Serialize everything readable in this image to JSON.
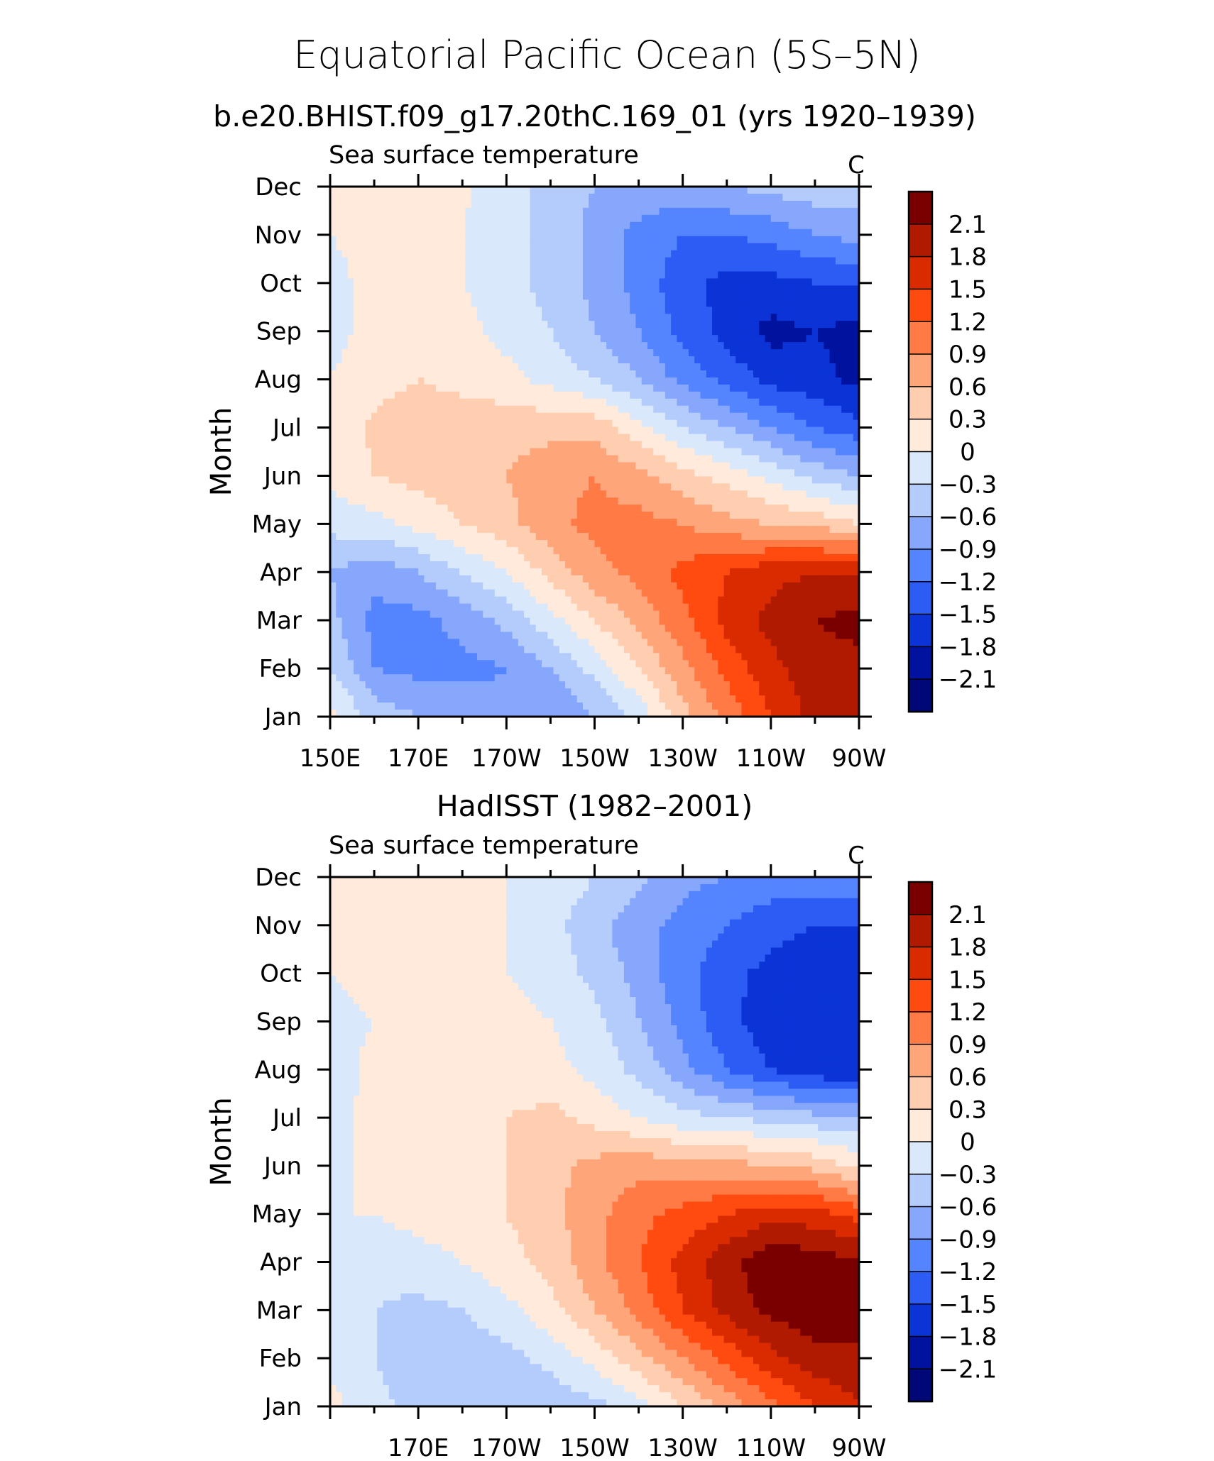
{
  "page": {
    "title": "Equatorial Pacific Ocean (5S–5N)"
  },
  "colorbar": {
    "labels": [
      "2.1",
      "1.8",
      "1.5",
      "1.2",
      "0.9",
      "0.6",
      "0.3",
      "0",
      "−0.3",
      "−0.6",
      "−0.9",
      "−1.2",
      "−1.5",
      "−1.8",
      "−2.1"
    ],
    "colors": [
      "#7a0000",
      "#b01a00",
      "#d92a00",
      "#ff4a10",
      "#ff7a45",
      "#ffa57a",
      "#ffcdb0",
      "#ffeadb",
      "#d9e8fb",
      "#b4ccfb",
      "#86a7fc",
      "#5584ff",
      "#2d5cf5",
      "#0b33d6",
      "#00129e",
      "#000878"
    ]
  },
  "chart_data": [
    {
      "type": "heatmap",
      "title": "b.e20.BHIST.f09_g17.20thC.169_01 (yrs 1920–1939)",
      "left_label": "Sea surface temperature",
      "units_label": "C",
      "ylabel": "Month",
      "xlabel": "",
      "y_categories": [
        "Jan",
        "Feb",
        "Mar",
        "Apr",
        "May",
        "Jun",
        "Jul",
        "Aug",
        "Sep",
        "Oct",
        "Nov",
        "Dec"
      ],
      "x_tick_labels": [
        "150E",
        "170E",
        "170W",
        "150W",
        "130W",
        "110W",
        "90W"
      ],
      "x_tick_lon": [
        150,
        170,
        190,
        210,
        230,
        250,
        270
      ],
      "xlim": [
        150,
        270
      ],
      "ylim": [
        1,
        12
      ],
      "levels": [
        -2.1,
        -1.8,
        -1.5,
        -1.2,
        -0.9,
        -0.6,
        -0.3,
        0,
        0.3,
        0.6,
        0.9,
        1.2,
        1.5,
        1.8,
        2.1
      ],
      "x": [
        150,
        160,
        170,
        180,
        190,
        200,
        210,
        220,
        230,
        240,
        250,
        260,
        270
      ],
      "z": [
        [
          0.1,
          -0.4,
          -0.6,
          -0.7,
          -0.8,
          -0.9,
          -0.6,
          -0.2,
          0.5,
          1.0,
          1.5,
          1.9,
          1.9
        ],
        [
          -0.3,
          -0.9,
          -1.0,
          -1.0,
          -0.9,
          -0.6,
          -0.2,
          0.3,
          0.8,
          1.3,
          1.7,
          2.0,
          2.0
        ],
        [
          -0.5,
          -1.0,
          -1.0,
          -0.8,
          -0.5,
          -0.1,
          0.3,
          0.7,
          1.1,
          1.6,
          1.9,
          2.1,
          2.2
        ],
        [
          -0.6,
          -0.8,
          -0.6,
          -0.3,
          0.0,
          0.4,
          0.8,
          1.0,
          1.3,
          1.5,
          1.7,
          1.8,
          1.8
        ],
        [
          -0.2,
          -0.1,
          0.1,
          0.3,
          0.5,
          0.8,
          1.0,
          1.0,
          0.9,
          0.7,
          0.6,
          0.5,
          0.3
        ],
        [
          0.1,
          0.3,
          0.4,
          0.5,
          0.6,
          0.8,
          0.9,
          0.7,
          0.4,
          0.2,
          -0.1,
          -0.4,
          -0.6
        ],
        [
          0.1,
          0.35,
          0.5,
          0.5,
          0.5,
          0.5,
          0.5,
          0.1,
          -0.3,
          -0.6,
          -0.9,
          -1.2,
          -1.4
        ],
        [
          0.0,
          0.2,
          0.3,
          0.2,
          0.1,
          -0.1,
          -0.3,
          -0.6,
          -1.0,
          -1.3,
          -1.6,
          -1.7,
          -1.9
        ],
        [
          -0.1,
          0.1,
          0.1,
          0.1,
          -0.1,
          -0.3,
          -0.6,
          -0.9,
          -1.3,
          -1.6,
          -1.9,
          -1.8,
          -1.9
        ],
        [
          -0.1,
          0.1,
          0.1,
          0.0,
          -0.2,
          -0.4,
          -0.7,
          -1.0,
          -1.4,
          -1.6,
          -1.6,
          -1.5,
          -1.5
        ],
        [
          0.0,
          0.1,
          0.1,
          0.0,
          -0.2,
          -0.4,
          -0.7,
          -1.0,
          -1.2,
          -1.2,
          -1.1,
          -0.9,
          -0.8
        ],
        [
          0.1,
          0.1,
          0.1,
          0.05,
          -0.2,
          -0.4,
          -0.6,
          -0.7,
          -0.7,
          -0.6,
          -0.5,
          -0.4,
          -0.4
        ]
      ]
    },
    {
      "type": "heatmap",
      "title": "HadISST (1982–2001)",
      "left_label": "Sea surface temperature",
      "units_label": "C",
      "ylabel": "Month",
      "xlabel": "",
      "y_categories": [
        "Jan",
        "Feb",
        "Mar",
        "Apr",
        "May",
        "Jun",
        "Jul",
        "Aug",
        "Sep",
        "Oct",
        "Nov",
        "Dec"
      ],
      "x_tick_labels": [
        "170E",
        "170W",
        "150W",
        "130W",
        "110W",
        "90W"
      ],
      "x_tick_lon": [
        170,
        190,
        210,
        230,
        250,
        270
      ],
      "xlim": [
        150,
        270
      ],
      "ylim": [
        1,
        12
      ],
      "levels": [
        -2.1,
        -1.8,
        -1.5,
        -1.2,
        -0.9,
        -0.6,
        -0.3,
        0,
        0.3,
        0.6,
        0.9,
        1.2,
        1.5,
        1.8,
        2.1
      ],
      "x": [
        150,
        160,
        170,
        180,
        190,
        200,
        210,
        220,
        230,
        240,
        250,
        260,
        270
      ],
      "z": [
        [
          0.1,
          -0.2,
          -0.4,
          -0.5,
          -0.5,
          -0.5,
          -0.4,
          -0.1,
          0.3,
          0.7,
          1.1,
          1.5,
          1.8
        ],
        [
          -0.1,
          -0.3,
          -0.5,
          -0.5,
          -0.4,
          -0.2,
          0.1,
          0.5,
          0.9,
          1.3,
          1.7,
          2.0,
          2.0
        ],
        [
          -0.1,
          -0.3,
          -0.4,
          -0.3,
          -0.1,
          0.2,
          0.6,
          1.0,
          1.5,
          1.9,
          2.2,
          2.3,
          2.3
        ],
        [
          -0.1,
          -0.2,
          -0.1,
          0.0,
          0.2,
          0.4,
          0.8,
          1.2,
          1.6,
          2.0,
          2.3,
          2.3,
          2.1
        ],
        [
          0.0,
          0.0,
          0.1,
          0.1,
          0.3,
          0.5,
          0.8,
          1.1,
          1.3,
          1.5,
          1.7,
          1.6,
          1.4
        ],
        [
          -0.1,
          0.1,
          0.2,
          0.2,
          0.3,
          0.5,
          0.7,
          0.8,
          0.7,
          0.7,
          0.6,
          0.5,
          0.2
        ],
        [
          -0.1,
          0.1,
          0.2,
          0.2,
          0.3,
          0.4,
          0.2,
          0.0,
          -0.2,
          -0.3,
          -0.4,
          -0.5,
          -0.5
        ],
        [
          -0.2,
          0.1,
          0.2,
          0.2,
          0.1,
          0.1,
          -0.1,
          -0.4,
          -0.8,
          -1.2,
          -1.5,
          -1.7,
          -1.8
        ],
        [
          -0.1,
          0.0,
          0.2,
          0.3,
          0.1,
          0.0,
          -0.2,
          -0.6,
          -1.0,
          -1.4,
          -1.7,
          -1.8,
          -1.8
        ],
        [
          0.0,
          0.1,
          0.2,
          0.1,
          0.0,
          -0.1,
          -0.4,
          -0.7,
          -1.1,
          -1.4,
          -1.6,
          -1.7,
          -1.7
        ],
        [
          0.0,
          0.1,
          0.1,
          0.1,
          0.0,
          -0.2,
          -0.5,
          -0.8,
          -1.0,
          -1.2,
          -1.4,
          -1.5,
          -1.5
        ],
        [
          0.1,
          0.1,
          0.1,
          0.1,
          0.0,
          -0.1,
          -0.3,
          -0.5,
          -0.8,
          -0.9,
          -1.0,
          -1.0,
          -0.9
        ]
      ]
    }
  ]
}
